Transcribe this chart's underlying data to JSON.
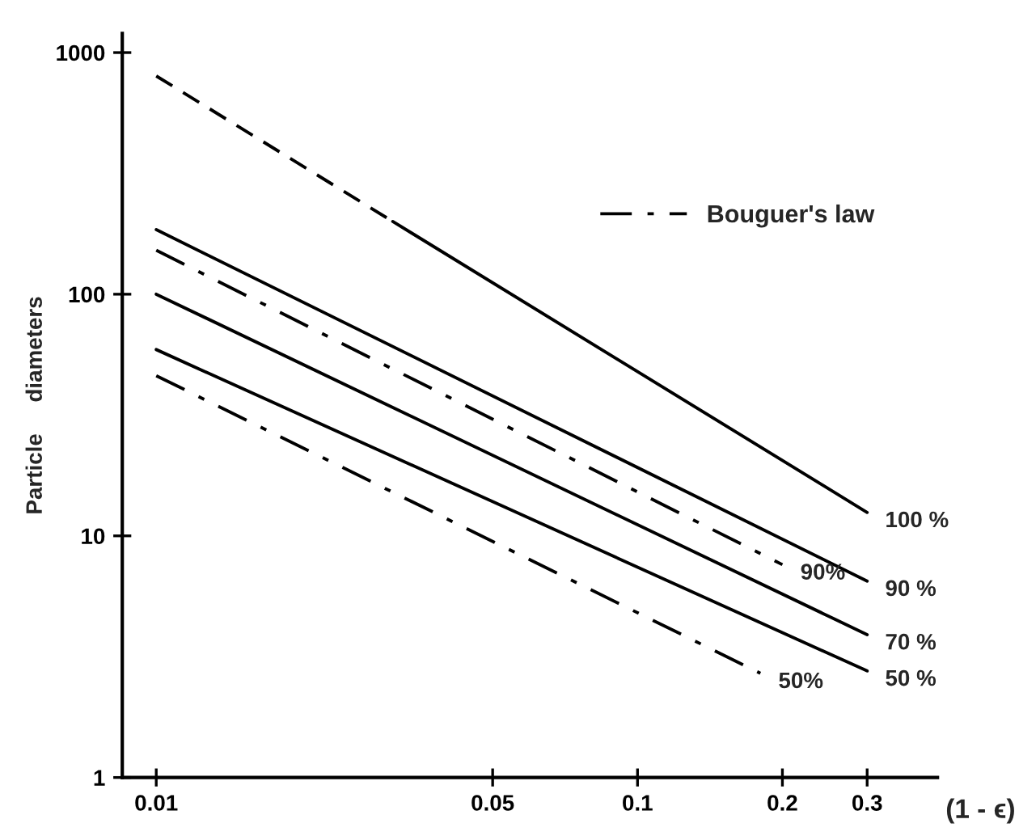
{
  "chart_data": {
    "type": "line",
    "xlabel": "(1 - ϵ)",
    "ylabel": "Particle     diameters",
    "log": "xy",
    "xlim": [
      0.0085,
      0.42
    ],
    "ylim": [
      1,
      1200
    ],
    "xticks": [
      0.01,
      0.05,
      0.1,
      0.2,
      0.3
    ],
    "yticks": [
      1,
      10,
      100,
      1000
    ],
    "grid": false,
    "legend": "top right",
    "marker": "none",
    "series": [
      {
        "color": "#000000",
        "line_style": "dashed",
        "x": [
          0.01,
          0.031
        ],
        "values": [
          800,
          200
        ]
      },
      {
        "color": "#000000",
        "line_style": "solid",
        "x": [
          0.031,
          0.3
        ],
        "values": [
          200,
          12.5
        ]
      },
      {
        "color": "#000000",
        "line_style": "solid",
        "x": [
          0.01,
          0.3
        ],
        "values": [
          185,
          6.5
        ]
      },
      {
        "name": "Bouguer's law",
        "color": "#000000",
        "line_style": "dashdot",
        "x": [
          0.01,
          0.2
        ],
        "values": [
          152,
          7.6
        ]
      },
      {
        "color": "#000000",
        "line_style": "solid",
        "x": [
          0.01,
          0.3
        ],
        "values": [
          100,
          3.9
        ]
      },
      {
        "color": "#000000",
        "line_style": "solid",
        "x": [
          0.01,
          0.3
        ],
        "values": [
          59,
          2.76
        ]
      },
      {
        "color": "#000000",
        "line_style": "dashdot",
        "x": [
          0.01,
          0.18
        ],
        "values": [
          46,
          2.7
        ]
      }
    ],
    "annotations": [
      {
        "text": "100 %",
        "x": 0.3,
        "y": 12.5
      },
      {
        "text": "90 %",
        "x": 0.3,
        "y": 6.5
      },
      {
        "text": "90%",
        "x": 0.2,
        "y": 7.6
      },
      {
        "text": "70 %",
        "x": 0.3,
        "y": 3.9
      },
      {
        "text": "50 %",
        "x": 0.3,
        "y": 2.76
      },
      {
        "text": "50%",
        "x": 0.18,
        "y": 2.7
      }
    ]
  }
}
